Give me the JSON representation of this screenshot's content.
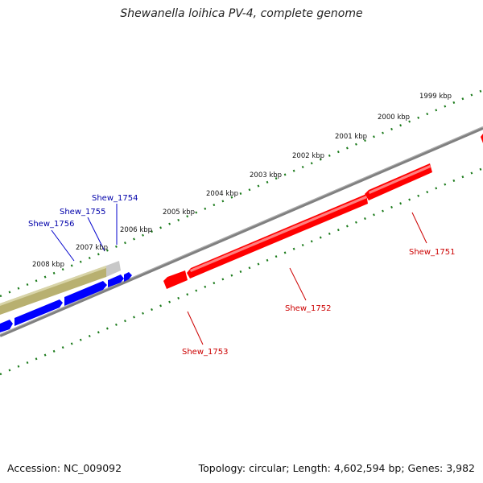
{
  "title": "Shewanella loihica PV-4, complete genome",
  "footer": {
    "accession": "Accession: NC_009092",
    "topology": "Topology: circular; Length: 4,602,594 bp; Genes: 3,982"
  },
  "scale_labels": [
    "1999 kbp",
    "2000 kbp",
    "2001 kbp",
    "2002 kbp",
    "2003 kbp",
    "2004 kbp",
    "2005 kbp",
    "2006 kbp",
    "2007 kbp",
    "2008 kbp"
  ],
  "genes": {
    "forward": [
      "Shew_1754",
      "Shew_1755",
      "Shew_1756"
    ],
    "reverse": [
      "Shew_1751",
      "Shew_1752",
      "Shew_1753"
    ]
  },
  "colors": {
    "forward_gene": "#0000ff",
    "reverse_gene": "#ff0000",
    "forward_label": "#0000aa",
    "reverse_label": "#cc0000",
    "scale_ticks": "#1a7a1a",
    "backbone": "#808080",
    "olive_feature": "#b8b070"
  }
}
